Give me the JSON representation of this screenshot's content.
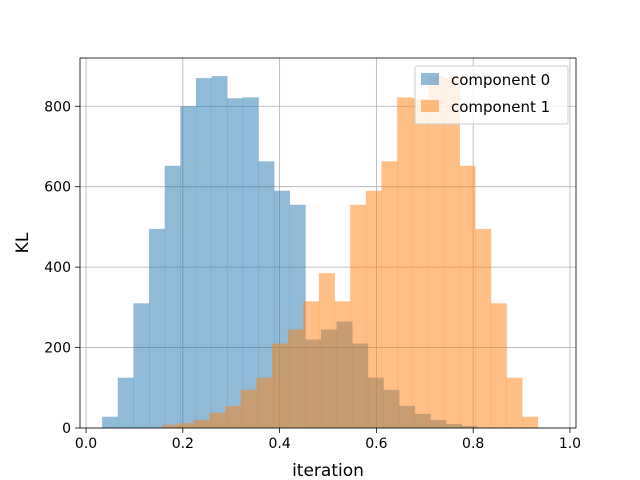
{
  "chart_data": {
    "type": "histogram",
    "title": "",
    "xlabel": "iteration",
    "ylabel": "KL",
    "xlim": [
      -0.0125,
      1.0125
    ],
    "ylim": [
      0,
      920
    ],
    "xticks": [
      0.0,
      0.2,
      0.4,
      0.6,
      0.8,
      1.0
    ],
    "xtick_labels": [
      "0.0",
      "0.2",
      "0.4",
      "0.6",
      "0.8",
      "1.0"
    ],
    "yticks": [
      0,
      200,
      400,
      600,
      800
    ],
    "ytick_labels": [
      "0",
      "200",
      "400",
      "600",
      "800"
    ],
    "grid": true,
    "legend_position": "top-right",
    "series": [
      {
        "name": "component 0",
        "color": "#1f77b4",
        "opacity": 0.5,
        "bin_start": 0.0333,
        "bin_width": 0.0323,
        "counts": [
          28,
          125,
          310,
          495,
          652,
          800,
          870,
          875,
          820,
          822,
          663,
          590,
          555,
          220,
          245,
          265,
          210,
          125,
          95,
          55,
          35,
          20,
          10,
          5
        ]
      },
      {
        "name": "component 1",
        "color": "#ff7f0e",
        "opacity": 0.5,
        "bin_start": 0.1583,
        "bin_width": 0.0323,
        "counts": [
          8,
          12,
          20,
          38,
          55,
          95,
          125,
          210,
          245,
          315,
          385,
          315,
          555,
          590,
          663,
          822,
          820,
          875,
          870,
          652,
          495,
          310,
          125,
          28
        ]
      }
    ]
  }
}
